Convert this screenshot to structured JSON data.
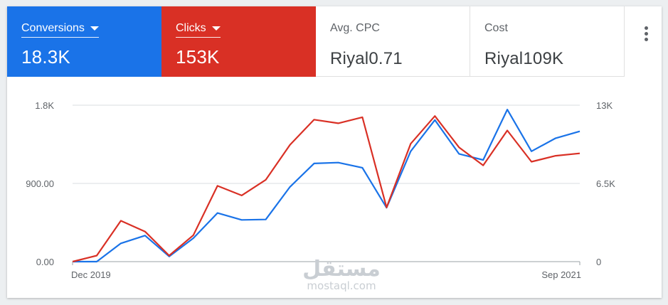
{
  "metrics": [
    {
      "label": "Conversions",
      "value": "18.3K",
      "color": "#1a73e8"
    },
    {
      "label": "Clicks",
      "value": "153K",
      "color": "#d93025"
    },
    {
      "label": "Avg. CPC",
      "value": "Riyal0.71"
    },
    {
      "label": "Cost",
      "value": "Riyal109K"
    }
  ],
  "menu": {
    "icon": "more-vert-icon"
  },
  "watermark": {
    "arabic": "مستقل",
    "latin": "mostaql.com"
  },
  "chart_data": {
    "type": "line",
    "x_labels": {
      "start": "Dec 2019",
      "end": "Sep 2021"
    },
    "left_axis": {
      "ticks": [
        "0.00",
        "900.00",
        "1.8K"
      ],
      "range": [
        0,
        1800
      ]
    },
    "right_axis": {
      "ticks": [
        "0",
        "6.5K",
        "13K"
      ],
      "range": [
        0,
        13000
      ]
    },
    "grid": true,
    "series": [
      {
        "name": "Conversions",
        "axis": "left",
        "color": "#1a73e8",
        "values": [
          0,
          0,
          210,
          300,
          60,
          270,
          560,
          480,
          485,
          860,
          1130,
          1140,
          1080,
          620,
          1270,
          1630,
          1240,
          1170,
          1750,
          1270,
          1420,
          1500
        ]
      },
      {
        "name": "Clicks",
        "axis": "right",
        "color": "#d93025",
        "values": [
          0,
          500,
          3400,
          2500,
          500,
          2200,
          6300,
          5500,
          6800,
          9700,
          11800,
          11500,
          12000,
          4500,
          9800,
          12100,
          9500,
          8000,
          10900,
          8300,
          8800,
          9000
        ]
      }
    ]
  }
}
